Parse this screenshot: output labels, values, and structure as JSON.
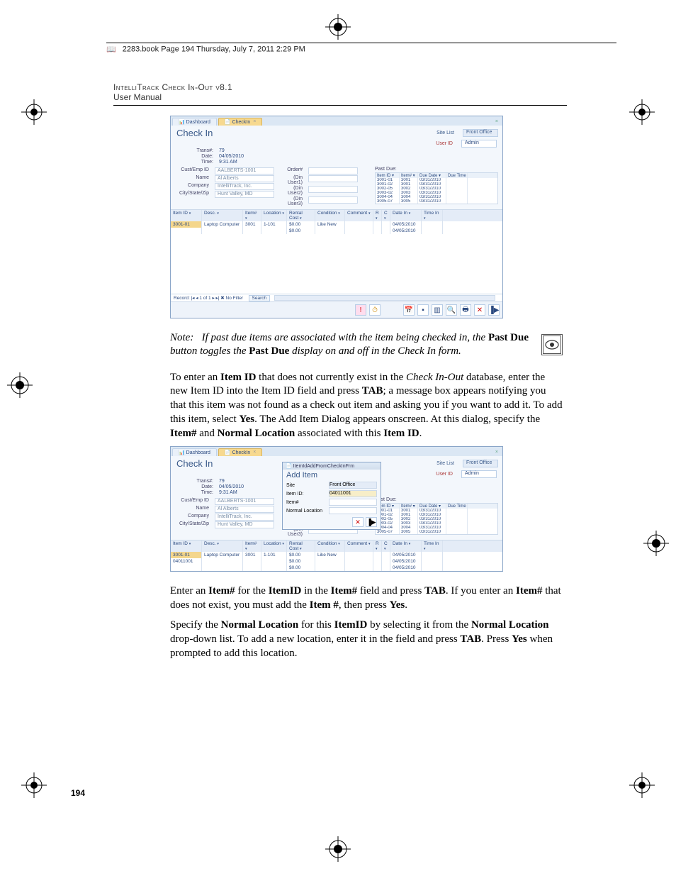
{
  "header_stamp": "2283.book  Page 194  Thursday, July 7, 2011  2:29 PM",
  "running_head_line1": "IntelliTrack Check In-Out v8.1",
  "running_head_line2": "User Manual",
  "page_number": "194",
  "screenshot1": {
    "tabs": {
      "dashboard": "Dashboard",
      "checkin": "CheckIn"
    },
    "title": "Check In",
    "site_list_label": "Site List",
    "site_list_value": "Front Office",
    "user_label": "User ID",
    "user_value": "Admin",
    "form": {
      "trans_label": "Trans#:",
      "trans_value": "79",
      "date_label": "Date:",
      "date_value": "04/05/2010",
      "time_label": "Time:",
      "time_value": "9:31 AM",
      "cust_label": "Cust/Emp ID",
      "cust_value": "AALBERTS-1001",
      "name_label": "Name",
      "name_value": "Al Alberts",
      "company_label": "Company",
      "company_value": "IntelliTrack, Inc.",
      "city_label": "City/State/Zip",
      "city_value": "Hunt Valley, MD",
      "orders_label": "Order#",
      "din1": "(Din User1)",
      "din2": "(Din User2)",
      "din3": "(Din User3)"
    },
    "pastdue": {
      "label": "Past Due:",
      "cols": [
        "Item ID",
        "Item#",
        "Due Date",
        "Due Time"
      ],
      "rows": [
        [
          "3001-01",
          "3001",
          "03/31/2010",
          ""
        ],
        [
          "3001-02",
          "3001",
          "03/31/2010",
          ""
        ],
        [
          "3002-05",
          "3002",
          "03/31/2010",
          ""
        ],
        [
          "3003-02",
          "3003",
          "03/31/2010",
          ""
        ],
        [
          "3004-04",
          "3004",
          "03/31/2010",
          ""
        ],
        [
          "3005-07",
          "3005",
          "03/31/2010",
          ""
        ]
      ]
    },
    "grid": {
      "cols": [
        "Item ID",
        "Desc.",
        "Item#",
        "Location",
        "Rental Cost",
        "Condition",
        "Comment",
        "R",
        "C",
        "Date In",
        "Time In"
      ],
      "rows": [
        [
          "3001-01",
          "Laptop Computer",
          "3001",
          "1-101",
          "$0.00",
          "Like New",
          "",
          "",
          "",
          "04/05/2010",
          ""
        ],
        [
          "",
          "",
          "",
          "",
          "$0.00",
          "",
          "",
          "",
          "",
          "04/05/2010",
          ""
        ]
      ],
      "footer_record": "Record: |◂ ◂ 1 of 1  ▸ ▸|  ✖ No Filter",
      "footer_search": "Search"
    }
  },
  "note": {
    "prefix": "Note:",
    "body1": "If past due items are associated with the item being checked in, the ",
    "bold1": "Past Due",
    "body2": " button toggles the ",
    "bold2": "Past Due",
    "body3": " display on and off in the Check In form."
  },
  "para1": {
    "t1": "To enter an ",
    "b1": "Item ID",
    "t2": " that does not currently exist in the ",
    "i1": "Check In-Out",
    "t3": " database, enter the new Item ID into the Item ID field and press ",
    "b2": "TAB",
    "t4": "; a message box appears notifying you that this item was not found as a check out item and asking you if you want to add it. To add this item, select ",
    "b3": "Yes",
    "t5": ". The Add Item Dialog appears onscreen. At this dialog, specify the ",
    "b4": "Item#",
    "t6": " and ",
    "b5": "Normal Location",
    "t7": " associated with this ",
    "b6": "Item ID",
    "t8": "."
  },
  "dialog": {
    "bar": "ItemIdAddFromCheckInFrm",
    "title": "Add Item",
    "site_label": "Site",
    "site_value": "Front Office",
    "itemid_label": "Item ID:",
    "itemid_value": "04011001",
    "itemno_label": "Item#",
    "loc_label": "Normal Location"
  },
  "screenshot2_extra_row": [
    "04011001",
    "",
    "",
    "",
    "$0.00",
    "",
    "",
    "",
    "",
    "04/05/2010",
    ""
  ],
  "para2": {
    "t1": "Enter an ",
    "b1": "Item#",
    "t2": " for the ",
    "b2": "ItemID",
    "t3": " in the ",
    "b3": "Item#",
    "t4": " field and press ",
    "b4": "TAB",
    "t5": ". If you enter an ",
    "b5": "Item#",
    "t6": " that does not exist, you must add the ",
    "b6": "Item #",
    "t7": ", then press ",
    "b7": "Yes",
    "t8": "."
  },
  "para3": {
    "t1": "Specify the ",
    "b1": "Normal Location",
    "t2": " for this ",
    "b2": "ItemID",
    "t3": " by selecting it from the ",
    "b3": "Normal Location",
    "t4": " drop-down list. To add a new location, enter it in the field and press ",
    "b4": "TAB",
    "t5": ". Press ",
    "b5": "Yes",
    "t6": " when prompted to add this location."
  }
}
